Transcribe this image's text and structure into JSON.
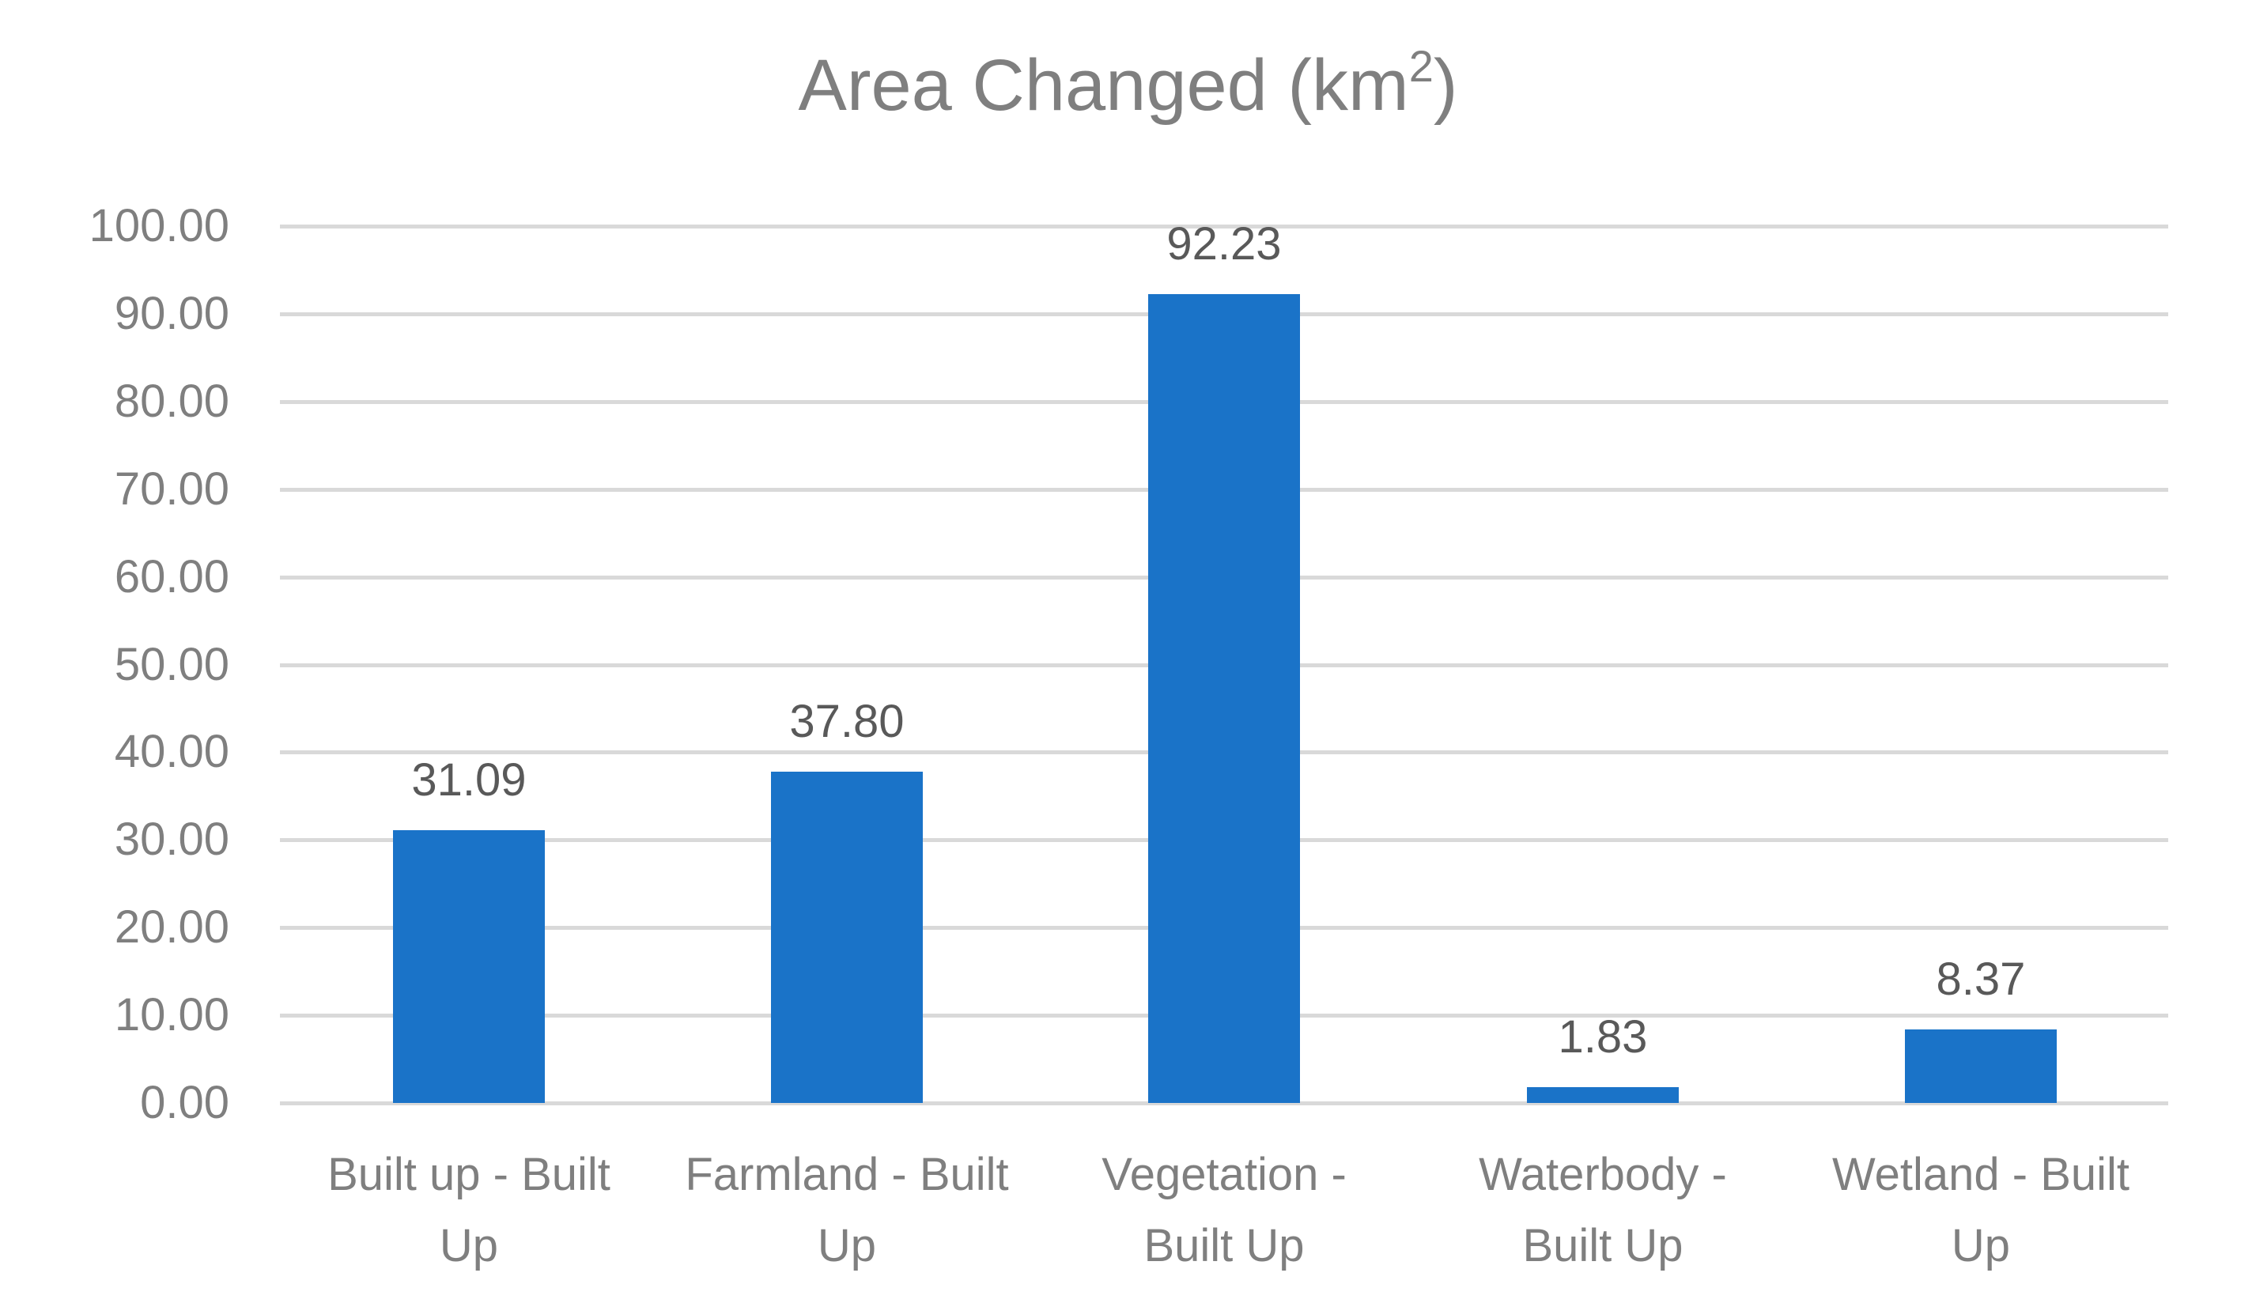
{
  "chart_data": {
    "type": "bar",
    "title": "Area Changed (km²)",
    "title_main": "Area Changed (km",
    "title_sup": "2",
    "title_end": ")",
    "xlabel": "",
    "ylabel": "",
    "categories": [
      "Built up - Built Up",
      "Farmland - Built Up",
      "Vegetation - Built Up",
      "Waterbody - Built Up",
      "Wetland - Built Up"
    ],
    "category_lines": [
      [
        "Built up - Built",
        "Up"
      ],
      [
        "Farmland - Built",
        "Up"
      ],
      [
        "Vegetation -",
        "Built Up"
      ],
      [
        "Waterbody -",
        "Built Up"
      ],
      [
        "Wetland - Built",
        "Up"
      ]
    ],
    "values": [
      31.09,
      37.8,
      92.23,
      1.83,
      8.37
    ],
    "value_labels": [
      "31.09",
      "37.80",
      "92.23",
      "1.83",
      "8.37"
    ],
    "ylim": [
      0,
      100
    ],
    "yticks": [
      "0.00",
      "10.00",
      "20.00",
      "30.00",
      "40.00",
      "50.00",
      "60.00",
      "70.00",
      "80.00",
      "90.00",
      "100.00"
    ],
    "grid": true,
    "legend": null,
    "bar_color": "#1a73c8",
    "grid_color": "#d9d9d9",
    "text_color": "#7f7f7f"
  }
}
